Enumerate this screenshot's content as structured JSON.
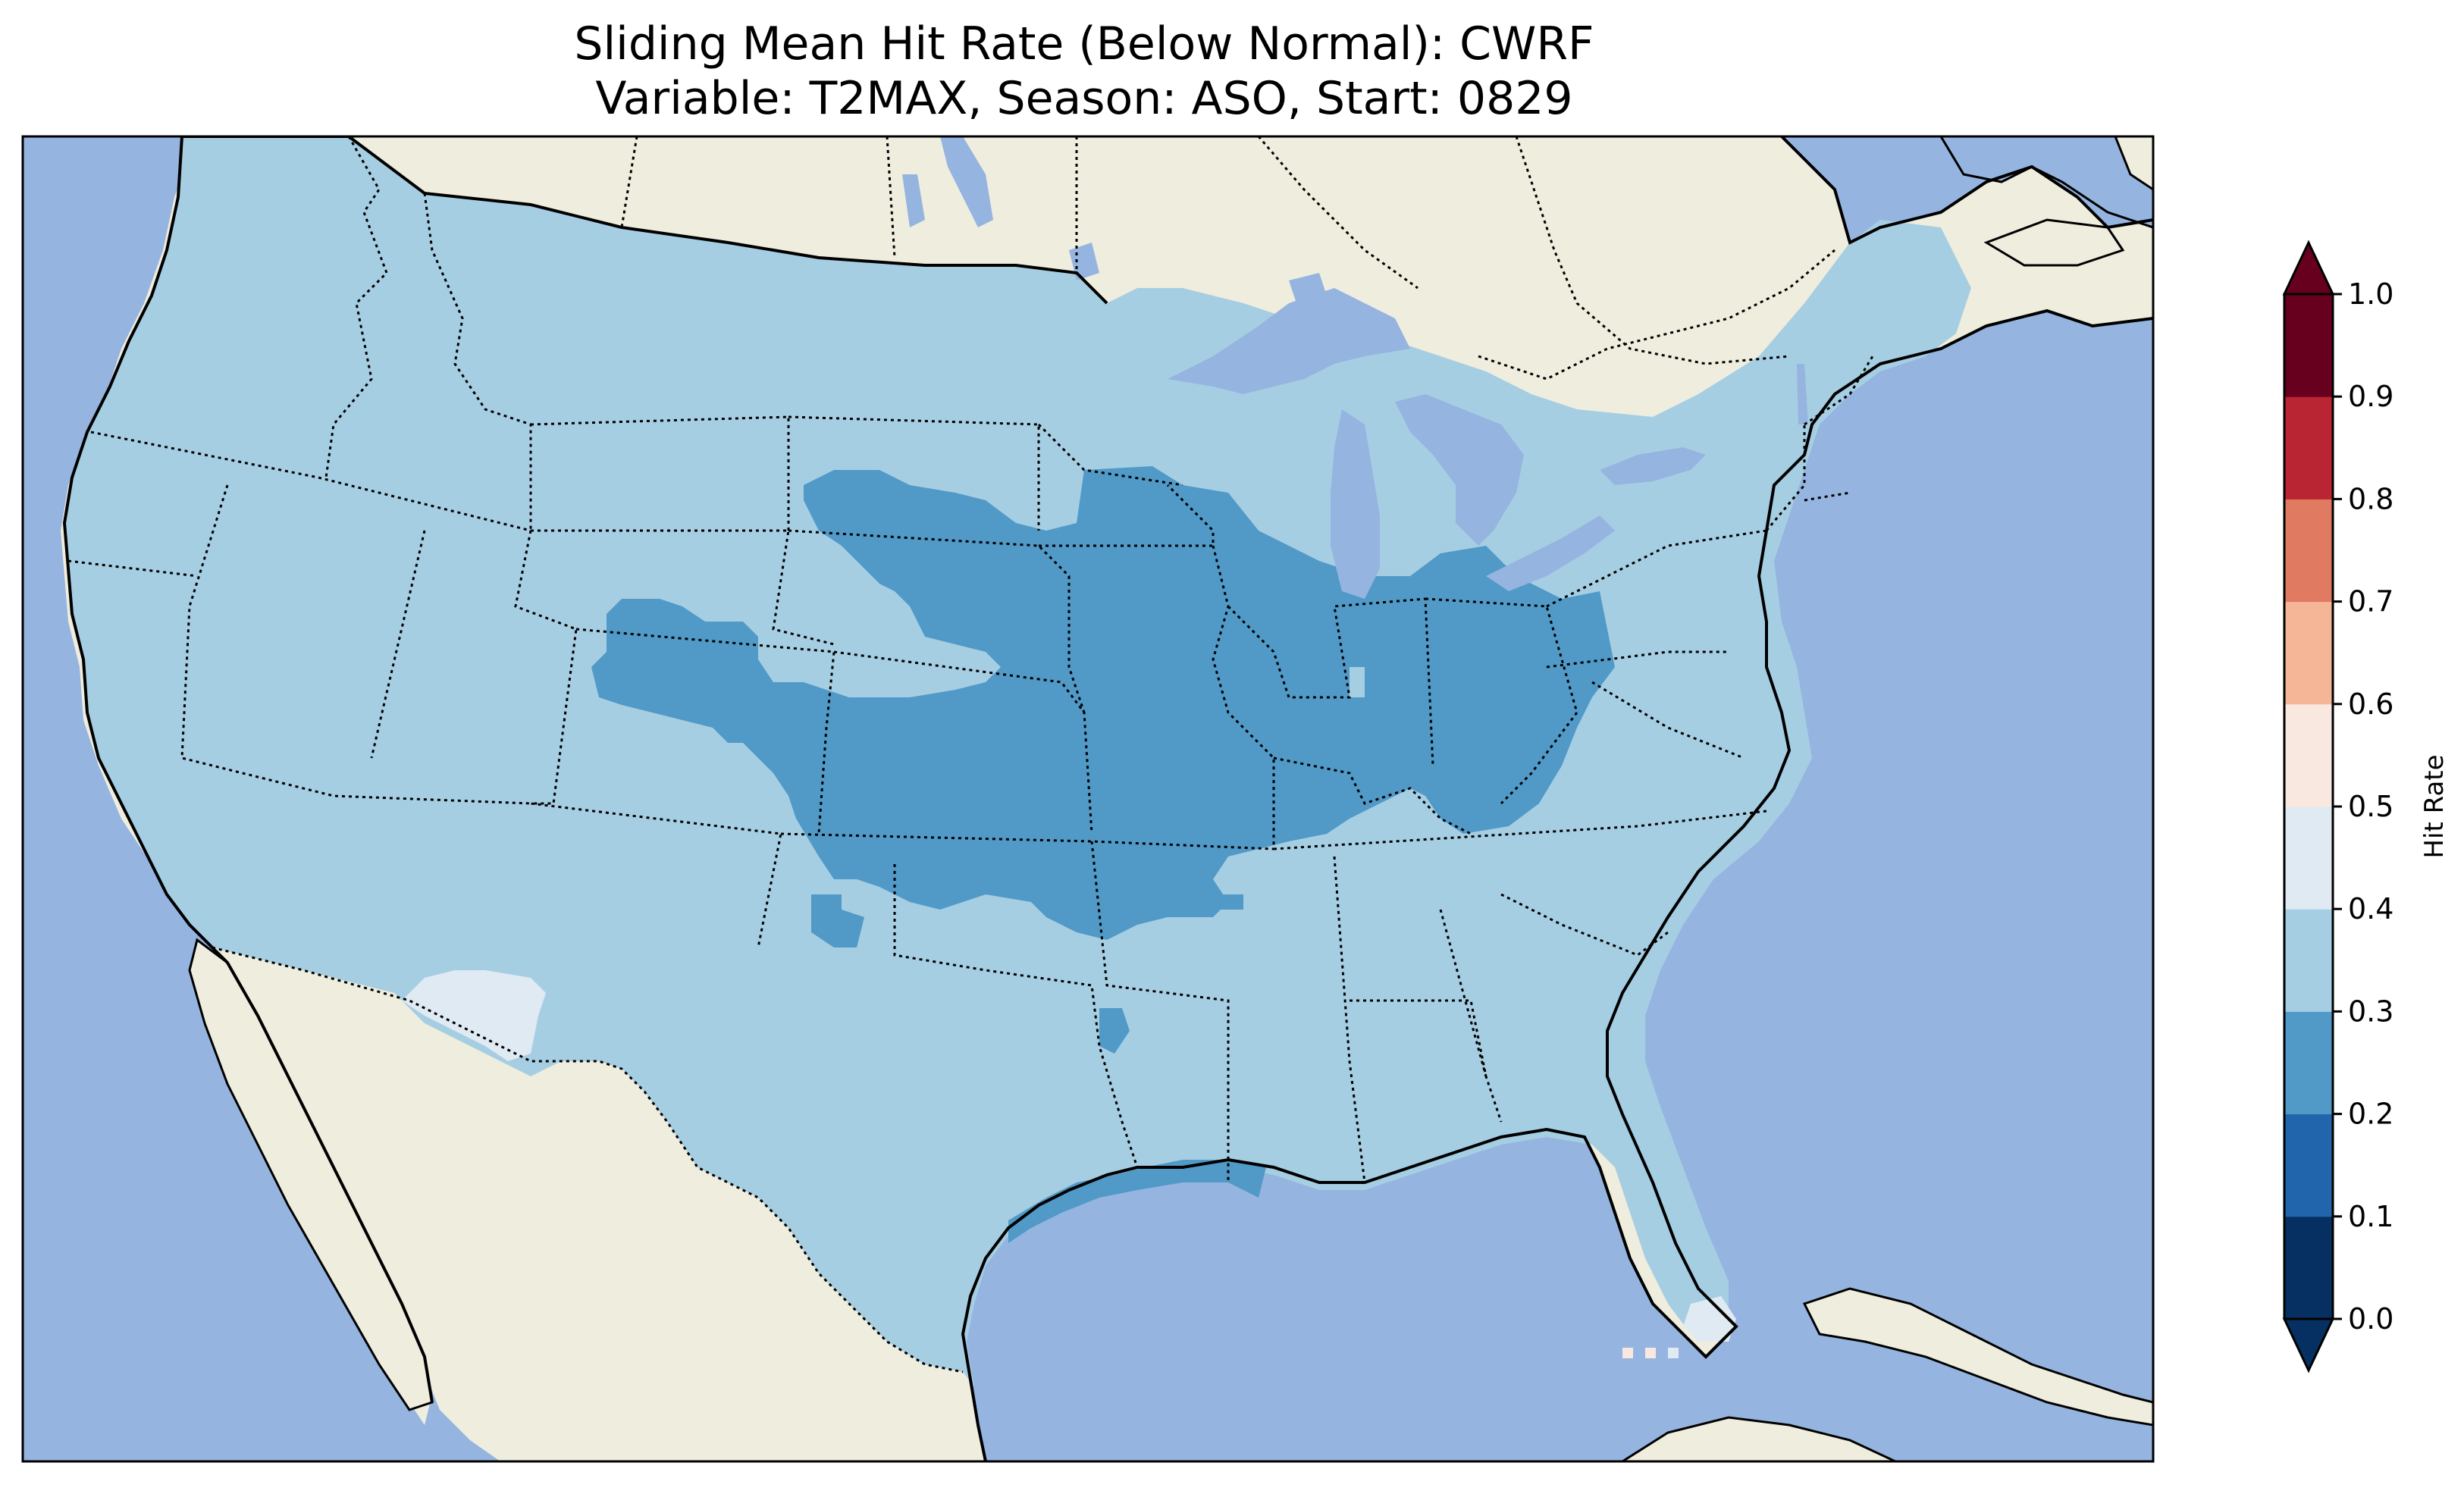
{
  "title": {
    "line1": "Sliding Mean Hit Rate (Below Normal): CWRF",
    "line2": "Variable: T2MAX, Season: ASO, Start: 0829"
  },
  "colors": {
    "ocean": "#95b4e0",
    "land": "#efedde",
    "coast": "#000000"
  },
  "colorbar": {
    "label": "Hit Rate",
    "ticks": [
      "0.0",
      "0.1",
      "0.2",
      "0.3",
      "0.4",
      "0.5",
      "0.6",
      "0.7",
      "0.8",
      "0.9",
      "1.0"
    ],
    "colors": [
      "#053061",
      "#2166ac",
      "#4393c3",
      "#92c5de",
      "#d1e5f0",
      "#f7f7f7",
      "#fddbc7",
      "#f4a582",
      "#d6604d",
      "#b2182b",
      "#67001f"
    ],
    "under_color": "#053061",
    "over_color": "#67001f"
  },
  "legend_bins": [
    {
      "range": "0.0-0.1",
      "color": "#053061"
    },
    {
      "range": "0.1-0.2",
      "color": "#2166ac"
    },
    {
      "range": "0.2-0.3",
      "color": "#5199c7"
    },
    {
      "range": "0.3-0.4",
      "color": "#a6cee3"
    },
    {
      "range": "0.4-0.5",
      "color": "#e0eaf2"
    },
    {
      "range": "0.5-0.6",
      "color": "#f9e8e0"
    },
    {
      "range": "0.6-0.7",
      "color": "#f5b698"
    },
    {
      "range": "0.7-0.8",
      "color": "#e07a60"
    },
    {
      "range": "0.8-0.9",
      "color": "#b92532"
    },
    {
      "range": "0.9-1.0",
      "color": "#67001f"
    }
  ],
  "map_layers": {
    "base_class": "0.3-0.4",
    "regions": [
      {
        "name": "midwest-ohio-valley",
        "class": "0.2-0.3"
      },
      {
        "name": "kansas-nebraska",
        "class": "0.2-0.3"
      },
      {
        "name": "texas-gulf-coast",
        "class": "0.2-0.3"
      },
      {
        "name": "arizona",
        "class": "0.4-0.5"
      },
      {
        "name": "south-florida",
        "class": "0.4-0.5"
      }
    ]
  }
}
